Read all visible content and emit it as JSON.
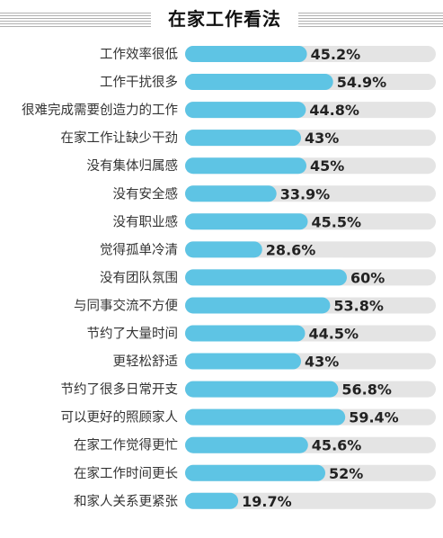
{
  "colors": {
    "bar_fill": "#5ec4e4",
    "bar_track": "#e4e4e4",
    "title_rule": "#b0b0b0"
  },
  "chart_data": {
    "type": "bar",
    "orientation": "horizontal",
    "title": "在家工作看法",
    "xlim": [
      0,
      100
    ],
    "unit": "%",
    "categories": [
      "工作效率很低",
      "工作干扰很多",
      "很难完成需要创造力的工作",
      "在家工作让缺少干劲",
      "没有集体归属感",
      "没有安全感",
      "没有职业感",
      "觉得孤单冷清",
      "没有团队氛围",
      "与同事交流不方便",
      "节约了大量时间",
      "更轻松舒适",
      "节约了很多日常开支",
      "可以更好的照顾家人",
      "在家工作觉得更忙",
      "在家工作时间更长",
      "和家人关系更紧张"
    ],
    "values": [
      45.2,
      54.9,
      44.8,
      43,
      45,
      33.9,
      45.5,
      28.6,
      60,
      53.8,
      44.5,
      43,
      56.8,
      59.4,
      45.6,
      52,
      19.7
    ],
    "value_labels": [
      "45.2%",
      "54.9%",
      "44.8%",
      "43%",
      "45%",
      "33.9%",
      "45.5%",
      "28.6%",
      "60%",
      "53.8%",
      "44.5%",
      "43%",
      "56.8%",
      "59.4%",
      "45.6%",
      "52%",
      "19.7%"
    ]
  }
}
